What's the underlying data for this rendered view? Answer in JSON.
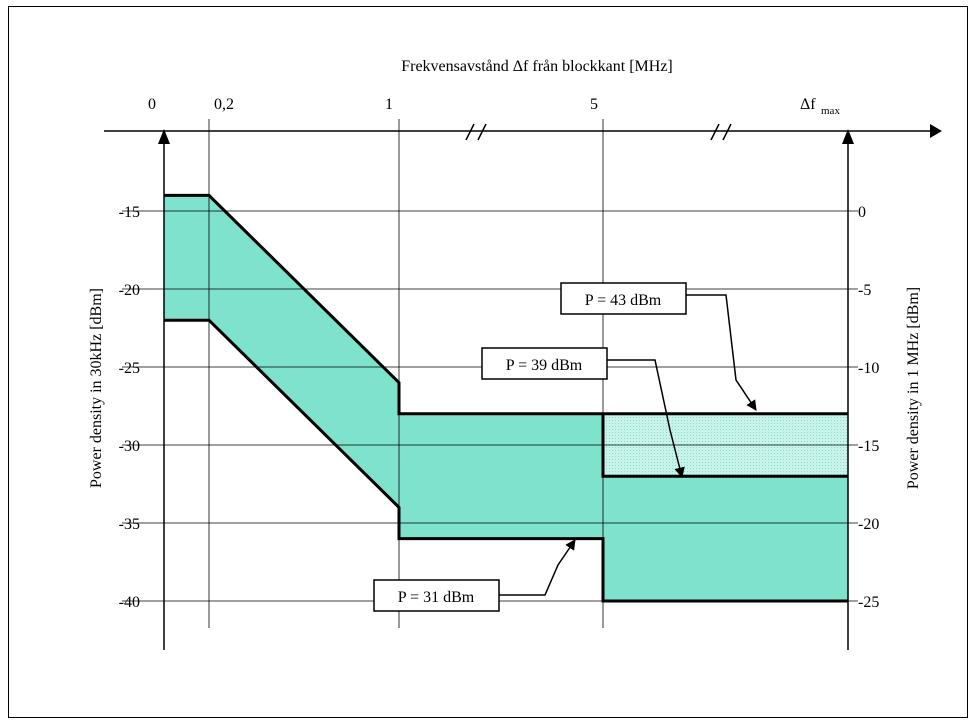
{
  "colors": {
    "band_fill": "#7ee2cc",
    "band_fill_light": "#c9f2ea",
    "line": "#000000"
  },
  "chart_data": {
    "type": "area",
    "top_axis_label": "Frekvensavstånd Δf från blockkant [MHz]",
    "top_ticks": [
      "0",
      "0,2",
      "1",
      "5"
    ],
    "top_tick_max": {
      "base": "Δf",
      "sub": "max"
    },
    "left_axis_label": "Power density in 30kHz [dBm]",
    "right_axis_label": "Power density in 1 MHz [dBm]",
    "left_ticks": [
      "-15",
      "-20",
      "-25",
      "-30",
      "-35",
      "-40"
    ],
    "right_ticks": [
      "0",
      "-5",
      "-10",
      "-15",
      "-20",
      "-25"
    ],
    "left_ylim": [
      -40,
      -15
    ],
    "right_ylim": [
      -25,
      0
    ],
    "series": [
      {
        "name": "P = 43 dBm",
        "points": [
          [
            "0",
            -14
          ],
          [
            "0,2",
            -14
          ],
          [
            "1",
            -26
          ],
          [
            "1",
            -28
          ],
          [
            "5",
            -28
          ],
          [
            "Δfmax",
            -28
          ]
        ]
      },
      {
        "name": "P = 39 dBm",
        "points": [
          [
            "5",
            -28
          ],
          [
            "5",
            -32
          ],
          [
            "Δfmax",
            -32
          ]
        ]
      },
      {
        "name": "P = 31 dBm",
        "points": [
          [
            "0",
            -22
          ],
          [
            "0,2",
            -22
          ],
          [
            "1",
            -34
          ],
          [
            "1",
            -36
          ],
          [
            "5",
            -36
          ],
          [
            "5",
            -40
          ],
          [
            "Δfmax",
            -40
          ]
        ]
      }
    ],
    "annotations": [
      "P = 43 dBm",
      "P = 39 dBm",
      "P = 31 dBm"
    ],
    "axis_break_marks": "//",
    "grid": true
  }
}
